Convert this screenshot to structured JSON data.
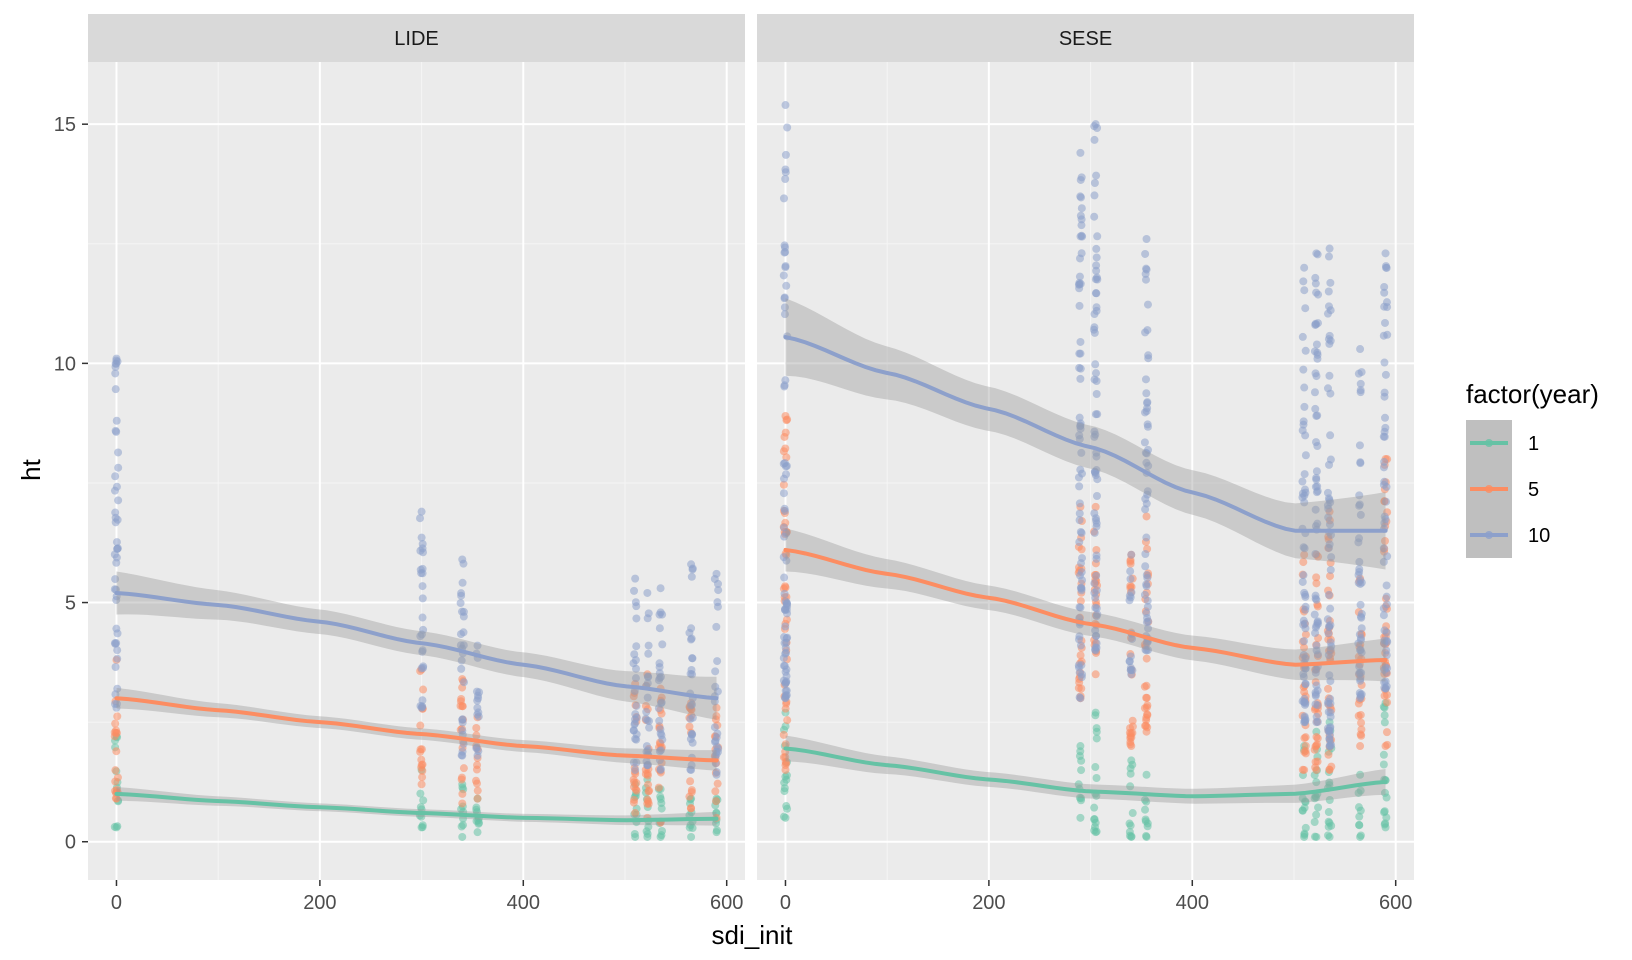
{
  "chart_data": {
    "type": "scatter",
    "xlabel": "sdi_init",
    "ylabel": "ht",
    "xlim": [
      -28,
      618
    ],
    "ylim": [
      -0.8,
      16.3
    ],
    "x_ticks": [
      0,
      200,
      400,
      600
    ],
    "x_tick_labels": [
      "0",
      "200",
      "400",
      "600"
    ],
    "y_ticks": [
      0,
      5,
      10,
      15
    ],
    "y_tick_labels": [
      "0",
      "5",
      "10",
      "15"
    ],
    "legend": {
      "title": "factor(year)",
      "placement": "right",
      "entries": [
        {
          "label": "1",
          "color": "#66C2A5"
        },
        {
          "label": "5",
          "color": "#FC8D62"
        },
        {
          "label": "10",
          "color": "#8DA0CB"
        }
      ]
    },
    "x_groups": [
      0,
      300,
      340,
      355,
      510,
      522,
      535,
      565,
      590
    ],
    "panels": [
      {
        "name": "LIDE",
        "series": [
          {
            "year": "1",
            "color": "#66C2A5",
            "smooth_x": [
              0,
              100,
              200,
              300,
              400,
              500,
              590
            ],
            "smooth_y": [
              1.0,
              0.85,
              0.72,
              0.6,
              0.5,
              0.45,
              0.48
            ],
            "band": 0.08,
            "points": [
              [
                0,
                0.3,
                2.2
              ],
              [
                300,
                0.3,
                1.5
              ],
              [
                340,
                0.1,
                1.2
              ],
              [
                355,
                0.2,
                0.9
              ],
              [
                510,
                0.1,
                1.2
              ],
              [
                522,
                0.1,
                1.3
              ],
              [
                535,
                0.1,
                1.1
              ],
              [
                565,
                0.1,
                0.9
              ],
              [
                590,
                0.2,
                0.9
              ]
            ]
          },
          {
            "year": "5",
            "color": "#FC8D62",
            "smooth_x": [
              0,
              100,
              200,
              300,
              400,
              500,
              590
            ],
            "smooth_y": [
              3.0,
              2.75,
              2.5,
              2.25,
              2.0,
              1.8,
              1.7
            ],
            "band": 0.12,
            "points": [
              [
                0,
                0.9,
                3.8
              ],
              [
                300,
                1.2,
                3.6
              ],
              [
                340,
                0.8,
                3.4
              ],
              [
                355,
                0.9,
                2.6
              ],
              [
                510,
                0.6,
                3.3
              ],
              [
                522,
                0.5,
                3.5
              ],
              [
                535,
                0.4,
                3.2
              ],
              [
                565,
                0.7,
                2.9
              ],
              [
                590,
                0.5,
                2.8
              ]
            ]
          },
          {
            "year": "10",
            "color": "#8DA0CB",
            "smooth_x": [
              0,
              100,
              200,
              300,
              400,
              500,
              590
            ],
            "smooth_y": [
              5.2,
              4.95,
              4.6,
              4.15,
              3.7,
              3.25,
              3.0
            ],
            "band": 0.25,
            "points": [
              [
                0,
                2.8,
                10.1
              ],
              [
                300,
                2.8,
                6.9
              ],
              [
                340,
                1.8,
                5.9
              ],
              [
                355,
                1.8,
                4.1
              ],
              [
                510,
                1.5,
                5.5
              ],
              [
                522,
                1.6,
                5.2
              ],
              [
                535,
                1.5,
                5.3
              ],
              [
                565,
                1.5,
                5.8
              ],
              [
                590,
                1.4,
                5.6
              ]
            ]
          }
        ]
      },
      {
        "name": "SESE",
        "series": [
          {
            "year": "1",
            "color": "#66C2A5",
            "smooth_x": [
              0,
              100,
              200,
              300,
              400,
              500,
              590
            ],
            "smooth_y": [
              1.95,
              1.6,
              1.3,
              1.05,
              0.95,
              1.0,
              1.25
            ],
            "band": 0.15,
            "points": [
              [
                0,
                0.5,
                2.7
              ],
              [
                290,
                0.5,
                2.0
              ],
              [
                305,
                0.2,
                2.7
              ],
              [
                340,
                0.1,
                1.7
              ],
              [
                355,
                0.1,
                1.4
              ],
              [
                510,
                0.1,
                2.0
              ],
              [
                522,
                0.1,
                2.3
              ],
              [
                535,
                0.1,
                2.5
              ],
              [
                565,
                0.1,
                1.4
              ],
              [
                590,
                0.3,
                2.9
              ]
            ]
          },
          {
            "year": "5",
            "color": "#FC8D62",
            "smooth_x": [
              0,
              100,
              200,
              300,
              400,
              500,
              590
            ],
            "smooth_y": [
              6.1,
              5.6,
              5.1,
              4.55,
              4.05,
              3.7,
              3.8
            ],
            "band": 0.25,
            "points": [
              [
                0,
                1.5,
                8.9
              ],
              [
                290,
                3.0,
                7.0
              ],
              [
                305,
                3.5,
                7.0
              ],
              [
                340,
                2.0,
                6.0
              ],
              [
                355,
                2.3,
                6.8
              ],
              [
                510,
                1.5,
                6.0
              ],
              [
                522,
                1.5,
                6.0
              ],
              [
                535,
                1.5,
                6.9
              ],
              [
                565,
                2.0,
                5.5
              ],
              [
                590,
                2.0,
                8.0
              ]
            ]
          },
          {
            "year": "10",
            "color": "#8DA0CB",
            "smooth_x": [
              0,
              100,
              200,
              300,
              400,
              500,
              590
            ],
            "smooth_y": [
              10.55,
              9.8,
              9.05,
              8.25,
              7.3,
              6.5,
              6.5
            ],
            "band": 0.45,
            "points": [
              [
                0,
                3.0,
                15.4
              ],
              [
                290,
                3.0,
                14.4
              ],
              [
                305,
                4.0,
                15.0
              ],
              [
                340,
                3.5,
                6.0
              ],
              [
                355,
                4.0,
                12.6
              ],
              [
                510,
                2.5,
                12.0
              ],
              [
                522,
                2.5,
                12.3
              ],
              [
                535,
                2.0,
                12.4
              ],
              [
                565,
                3.0,
                10.3
              ],
              [
                590,
                3.2,
                12.3
              ]
            ]
          }
        ]
      }
    ]
  }
}
